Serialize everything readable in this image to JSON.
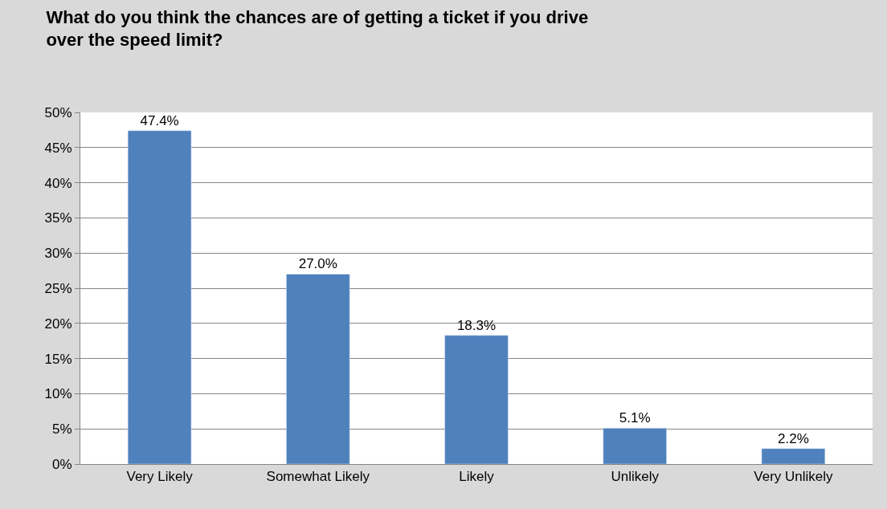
{
  "chart_data": {
    "type": "bar",
    "title": "What do you think the chances are of getting a ticket if you drive over the speed limit?",
    "categories": [
      "Very Likely",
      "Somewhat Likely",
      "Likely",
      "Unlikely",
      "Very Unlikely"
    ],
    "values": [
      47.4,
      27.0,
      18.3,
      5.1,
      2.2
    ],
    "value_labels": [
      "47.4%",
      "27.0%",
      "18.3%",
      "5.1%",
      "2.2%"
    ],
    "color": "#4f81bd",
    "ylim": [
      0,
      50
    ],
    "yticks": [
      {
        "value": 0,
        "label": "0%"
      },
      {
        "value": 5,
        "label": "5%"
      },
      {
        "value": 10,
        "label": "10%"
      },
      {
        "value": 15,
        "label": "15%"
      },
      {
        "value": 20,
        "label": "20%"
      },
      {
        "value": 25,
        "label": "25%"
      },
      {
        "value": 30,
        "label": "30%"
      },
      {
        "value": 35,
        "label": "35%"
      },
      {
        "value": 40,
        "label": "40%"
      },
      {
        "value": 45,
        "label": "45%"
      },
      {
        "value": 50,
        "label": "50%"
      }
    ],
    "grid": "y",
    "legend": false
  }
}
